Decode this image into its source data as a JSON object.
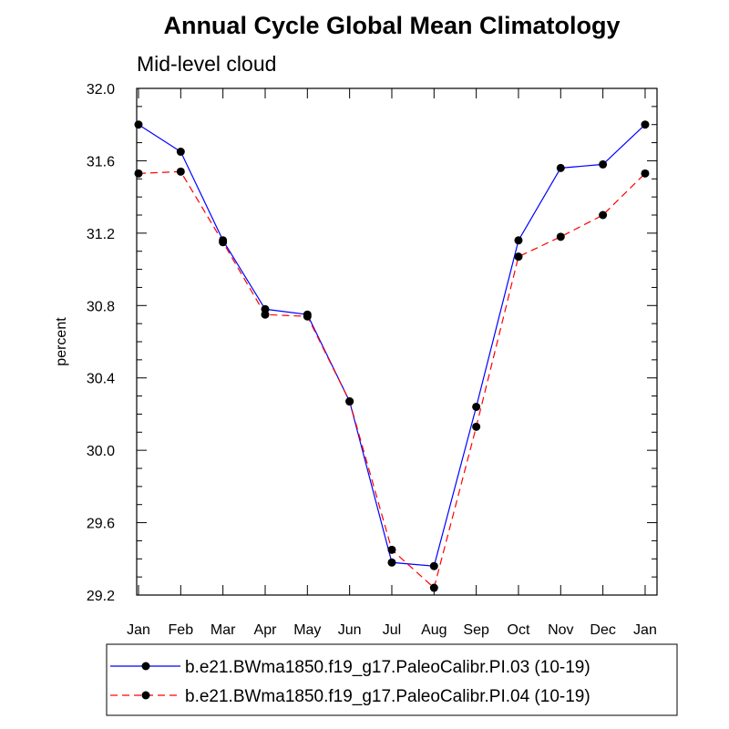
{
  "chart_data": {
    "type": "line",
    "title": "Annual Cycle Global Mean Climatology",
    "subtitle": "Mid-level cloud",
    "ylabel": "percent",
    "xlabel": "",
    "categories": [
      "Jan",
      "Feb",
      "Mar",
      "Apr",
      "May",
      "Jun",
      "Jul",
      "Aug",
      "Sep",
      "Oct",
      "Nov",
      "Dec",
      "Jan"
    ],
    "ylim": [
      29.2,
      32.0
    ],
    "yticks": [
      "29.2",
      "29.6",
      "30.0",
      "30.4",
      "30.8",
      "31.2",
      "31.6",
      "32.0"
    ],
    "series": [
      {
        "name": "b.e21.BWma1850.f19_g17.PaleoCalibr.PI.03 (10-19)",
        "color": "#0000ff",
        "dash": "solid",
        "values": [
          31.8,
          31.65,
          31.16,
          30.78,
          30.75,
          30.27,
          29.38,
          29.36,
          30.24,
          31.16,
          31.56,
          31.58,
          31.8
        ]
      },
      {
        "name": "b.e21.BWma1850.f19_g17.PaleoCalibr.PI.04 (10-19)",
        "color": "#ff0000",
        "dash": "dashed",
        "values": [
          31.53,
          31.54,
          31.15,
          30.75,
          30.74,
          30.27,
          29.45,
          29.24,
          30.13,
          31.07,
          31.18,
          31.3,
          31.53
        ]
      }
    ],
    "markers": "filled-circle",
    "marker_color": "#000000",
    "grid": false,
    "legend_position": "bottom"
  }
}
